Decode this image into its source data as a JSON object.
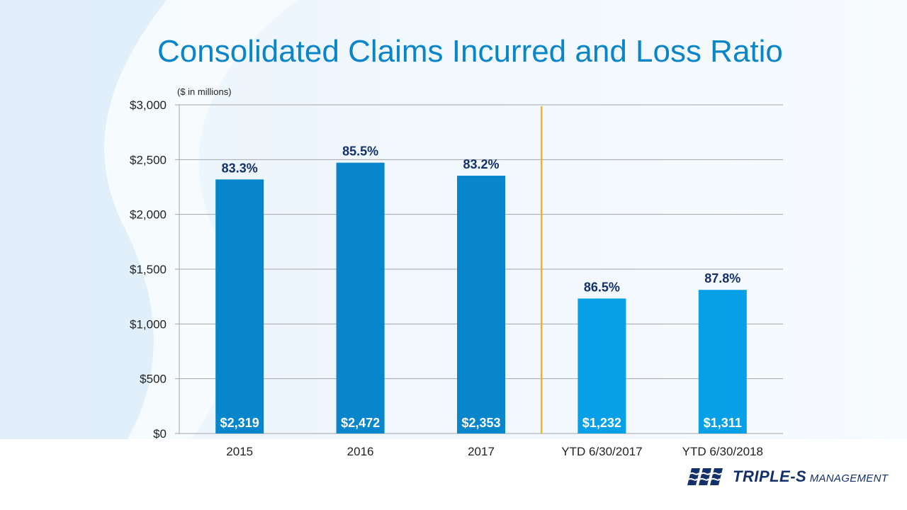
{
  "slide": {
    "title": "Consolidated Claims Incurred and Loss Ratio"
  },
  "logo": {
    "brand": "TRIPLE-S",
    "sub": "MANAGEMENT"
  },
  "chart_data": {
    "type": "bar",
    "title": "Consolidated Claims Incurred and Loss Ratio",
    "unit_note": "($ in millions)",
    "categories": [
      "2015",
      "2016",
      "2017",
      "YTD 6/30/2017",
      "YTD 6/30/2018"
    ],
    "values": [
      2319,
      2472,
      2353,
      1232,
      1311
    ],
    "value_labels": [
      "$2,319",
      "$2,472",
      "$2,353",
      "$1,232",
      "$1,311"
    ],
    "ratio_labels": [
      "83.3%",
      "85.5%",
      "83.2%",
      "86.5%",
      "87.8%"
    ],
    "ylim": [
      0,
      3000
    ],
    "yticks": [
      0,
      500,
      1000,
      1500,
      2000,
      2500,
      3000
    ],
    "ytick_labels": [
      "$0",
      "$500",
      "$1,000",
      "$1,500",
      "$2,000",
      "$2,500",
      "$3,000"
    ],
    "grid": true,
    "bar_colors": [
      "#0786cc",
      "#0786cc",
      "#0786cc",
      "#07a0e6",
      "#07a0e6"
    ],
    "separator_color": "#f2b51c",
    "separator_after_index": 2
  }
}
